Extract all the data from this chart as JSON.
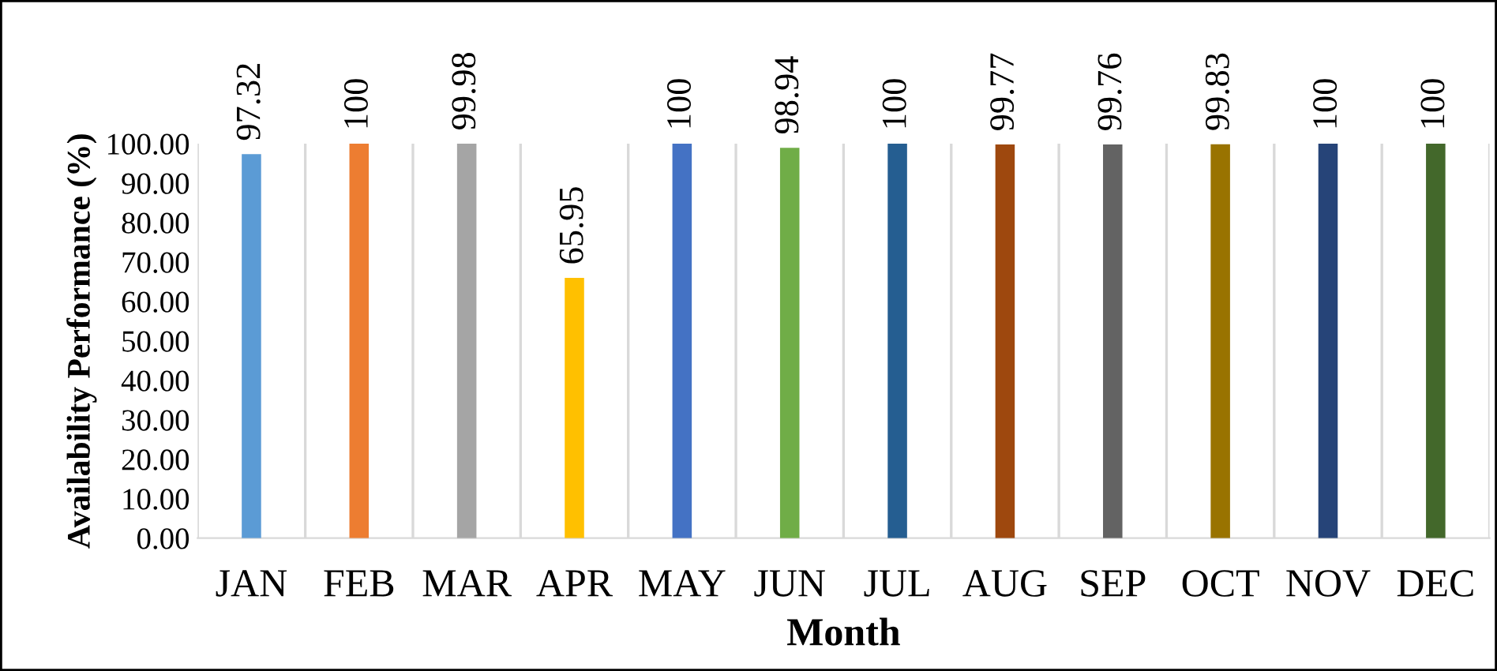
{
  "chart_data": {
    "type": "bar",
    "xlabel": "Month",
    "ylabel": "Availability Performance (%)",
    "categories": [
      "JAN",
      "FEB",
      "MAR",
      "APR",
      "MAY",
      "JUN",
      "JUL",
      "AUG",
      "SEP",
      "OCT",
      "NOV",
      "DEC"
    ],
    "values": [
      97.32,
      100,
      99.98,
      65.95,
      100,
      98.94,
      100,
      99.77,
      99.76,
      99.83,
      100,
      100
    ],
    "colors": [
      "#5b9bd5",
      "#ed7d31",
      "#a5a5a5",
      "#ffc000",
      "#4472c4",
      "#70ad47",
      "#255e91",
      "#9e480e",
      "#636363",
      "#997300",
      "#264478",
      "#43682b"
    ],
    "ylim": [
      0,
      100
    ],
    "yticks": [
      {
        "value": 0,
        "label": "0.00"
      },
      {
        "value": 10,
        "label": "10.00"
      },
      {
        "value": 20,
        "label": "20.00"
      },
      {
        "value": 30,
        "label": "30.00"
      },
      {
        "value": 40,
        "label": "40.00"
      },
      {
        "value": 50,
        "label": "50.00"
      },
      {
        "value": 60,
        "label": "60.00"
      },
      {
        "value": 70,
        "label": "70.00"
      },
      {
        "value": 80,
        "label": "80.00"
      },
      {
        "value": 90,
        "label": "90.00"
      },
      {
        "value": 100,
        "label": "100.00"
      }
    ],
    "grid": "x",
    "data_labels": true,
    "legend": false
  }
}
